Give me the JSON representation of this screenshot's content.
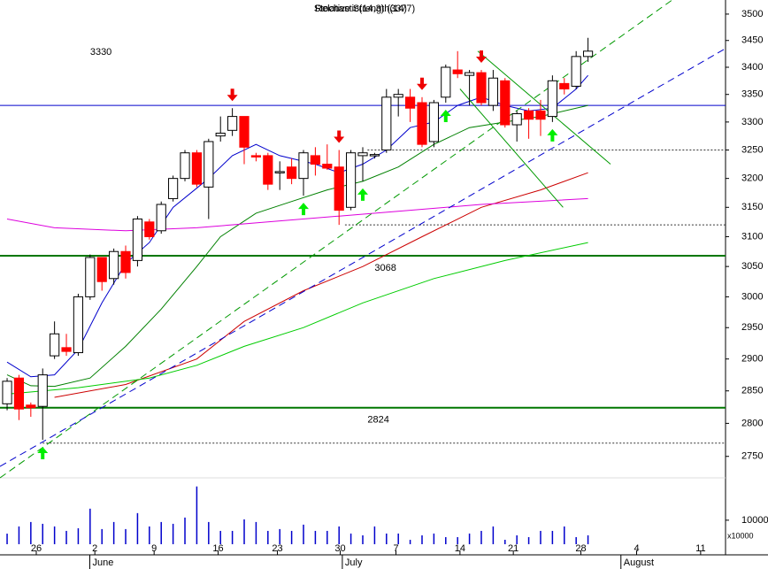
{
  "chart_data": {
    "type": "candlestick",
    "title": "Relative Strength(14)",
    "subtitle": "Stochastic(14,3) (3377)",
    "log_scale": true,
    "xlim": [
      -0.6,
      60.6
    ],
    "ylim": [
      2718,
      3527
    ],
    "yticks": [
      2750,
      2800,
      2850,
      2900,
      2950,
      3000,
      3050,
      3100,
      3150,
      3200,
      3250,
      3300,
      3350,
      3400,
      3450,
      3500
    ],
    "xticks": [
      {
        "value": 2.46,
        "label": "26"
      },
      {
        "value": 7.4,
        "label": "2"
      },
      {
        "value": 12.4,
        "label": "9"
      },
      {
        "value": 17.8,
        "label": "16"
      },
      {
        "value": 22.8,
        "label": "23"
      },
      {
        "value": 28.1,
        "label": "30"
      },
      {
        "value": 32.8,
        "label": "7"
      },
      {
        "value": 38.2,
        "label": "14"
      },
      {
        "value": 42.7,
        "label": "21"
      },
      {
        "value": 48.4,
        "label": "28"
      },
      {
        "value": 53.1,
        "label": "4"
      },
      {
        "value": 58.5,
        "label": "11"
      }
    ],
    "months": [
      {
        "value": 7.2,
        "label": "June"
      },
      {
        "value": 28.5,
        "label": "July"
      },
      {
        "value": 52,
        "label": "August"
      }
    ],
    "open": [
      2830,
      2870,
      2828,
      2826,
      2905,
      2918,
      2910,
      3000,
      3065,
      3030,
      3075,
      3060,
      3125,
      3110,
      3165,
      3200,
      3245,
      3185,
      3275,
      3285,
      3310,
      3240,
      3240,
      3210,
      3220,
      3200,
      3240,
      3225,
      3220,
      3150,
      3240,
      3240,
      3250,
      3345,
      3345,
      3335,
      3265,
      3345,
      3395,
      3385,
      3390,
      3330,
      3375,
      3295,
      3320,
      3320,
      3310,
      3370,
      3365,
      3420
    ],
    "high": [
      2870,
      2875,
      2832,
      2885,
      2960,
      2940,
      3005,
      3070,
      3065,
      3080,
      3085,
      3135,
      3130,
      3160,
      3205,
      3250,
      3250,
      3270,
      3310,
      3325,
      3310,
      3245,
      3245,
      3230,
      3235,
      3250,
      3255,
      3260,
      3250,
      3250,
      3255,
      3245,
      3360,
      3360,
      3360,
      3345,
      3340,
      3405,
      3430,
      3395,
      3395,
      3395,
      3380,
      3320,
      3325,
      3340,
      3385,
      3380,
      3430,
      3455
    ],
    "low": [
      2820,
      2805,
      2810,
      2775,
      2900,
      2905,
      2905,
      2995,
      3010,
      3020,
      3030,
      3050,
      3095,
      3105,
      3160,
      3195,
      3185,
      3130,
      3265,
      3275,
      3225,
      3230,
      3180,
      3180,
      3190,
      3170,
      3205,
      3215,
      3120,
      3145,
      3195,
      3235,
      3245,
      3310,
      3300,
      3255,
      3255,
      3335,
      3380,
      3330,
      3330,
      3320,
      3290,
      3265,
      3270,
      3275,
      3300,
      3350,
      3360,
      3410
    ],
    "close": [
      2865,
      2822,
      2824,
      2875,
      2940,
      2912,
      3000,
      3065,
      3025,
      3075,
      3040,
      3130,
      3100,
      3155,
      3200,
      3245,
      3190,
      3265,
      3280,
      3310,
      3255,
      3238,
      3190,
      3212,
      3200,
      3245,
      3225,
      3218,
      3145,
      3245,
      3245,
      3242,
      3345,
      3350,
      3325,
      3260,
      3335,
      3400,
      3388,
      3390,
      3335,
      3380,
      3295,
      3315,
      3305,
      3305,
      3375,
      3360,
      3420,
      3430
    ],
    "up_color": "#ffffff",
    "down_color": "#ff0000",
    "moving_averages": [
      {
        "color": "#0000cc",
        "x": [
          0,
          2,
          4,
          6,
          8,
          10,
          12,
          14,
          17,
          19,
          21,
          23,
          26,
          28,
          30,
          32,
          34,
          36,
          38,
          40,
          42,
          44,
          46,
          48,
          49
        ],
        "values": [
          2895,
          2872,
          2875,
          2915,
          2990,
          3055,
          3090,
          3150,
          3200,
          3240,
          3260,
          3240,
          3225,
          3210,
          3225,
          3250,
          3290,
          3300,
          3330,
          3345,
          3330,
          3320,
          3325,
          3360,
          3385
        ]
      },
      {
        "color": "#008000",
        "x": [
          0,
          2,
          4,
          7,
          10,
          13,
          16,
          18,
          21,
          24,
          27,
          30,
          33,
          36,
          39,
          42,
          45,
          49
        ],
        "values": [
          2875,
          2858,
          2857,
          2870,
          2920,
          2980,
          3050,
          3100,
          3140,
          3160,
          3180,
          3195,
          3220,
          3260,
          3290,
          3300,
          3310,
          3330
        ]
      },
      {
        "color": "#cc0000",
        "x": [
          4,
          10,
          16,
          20,
          25,
          30,
          35,
          40,
          45,
          49
        ],
        "values": [
          2840,
          2860,
          2900,
          2960,
          3010,
          3050,
          3100,
          3150,
          3180,
          3210
        ]
      },
      {
        "color": "#00cc00",
        "x": [
          0,
          6,
          12,
          16,
          20,
          25,
          30,
          36,
          42,
          49
        ],
        "values": [
          2845,
          2855,
          2870,
          2890,
          2920,
          2950,
          2990,
          3030,
          3060,
          3090
        ]
      },
      {
        "color": "#dd00dd",
        "x": [
          0,
          4,
          10,
          16,
          22,
          28,
          34,
          40,
          49
        ],
        "values": [
          3130,
          3115,
          3110,
          3115,
          3125,
          3135,
          3145,
          3155,
          3165
        ]
      }
    ],
    "levels": [
      {
        "value": 3330,
        "label": "3330",
        "color": "#0000cc",
        "label_x": 7
      },
      {
        "value": 3068,
        "label": "3068",
        "color": "#007700",
        "label_x": 31
      },
      {
        "value": 2824,
        "label": "2824",
        "color": "#007700",
        "label_x": 30.4
      }
    ],
    "dotted_levels": [
      {
        "value": 3250,
        "from": 30.4
      },
      {
        "value": 3120,
        "from": 28.5
      },
      {
        "value": 2770,
        "from": 3
      }
    ],
    "trend_lines": [
      {
        "color": "#009900",
        "dash": true,
        "x": [
          -0.6,
          56.1
        ],
        "values": [
          2718,
          3527
        ]
      },
      {
        "color": "#0000cc",
        "dash": true,
        "x": [
          -0.6,
          60.6
        ],
        "values": [
          2735,
          3435
        ]
      },
      {
        "color": "#009900",
        "dash": false,
        "x": [
          39.7,
          50.9
        ],
        "values": [
          3430,
          3225
        ]
      },
      {
        "color": "#009900",
        "dash": false,
        "x": [
          38.2,
          46.9
        ],
        "values": [
          3360,
          3150
        ]
      }
    ],
    "up_arrows": [
      3,
      25,
      30,
      37,
      46
    ],
    "down_arrows": [
      19,
      28,
      35,
      40
    ],
    "volume": {
      "color": "#0000cc",
      "ylim": [
        0,
        28000
      ],
      "yticks": [
        10000
      ],
      "unit_label": "x10000",
      "values": [
        4400,
        7400,
        9250,
        8500,
        7400,
        5550,
        6650,
        14800,
        6300,
        9250,
        6300,
        12950,
        7400,
        9250,
        8500,
        11100,
        24050,
        9250,
        5550,
        5550,
        10350,
        9250,
        5550,
        6300,
        5550,
        8150,
        5550,
        5550,
        7400,
        4450,
        3700,
        7400,
        4450,
        4450,
        1850,
        3700,
        4450,
        2950,
        2950,
        4450,
        5550,
        7400,
        1850,
        3700,
        2950,
        5550,
        5550,
        7400,
        2950,
        3700
      ]
    }
  }
}
